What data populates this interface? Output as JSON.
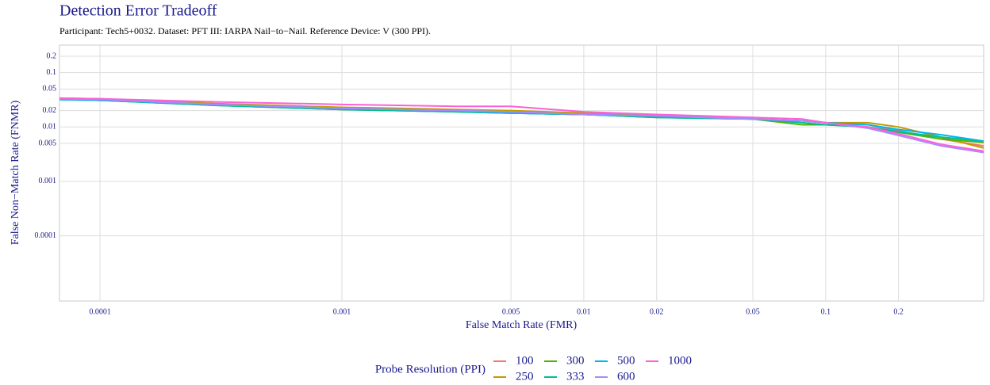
{
  "chart_data": {
    "type": "line",
    "title": "Detection Error Tradeoff",
    "subtitle": "Participant: Tech5+0032. Dataset: PFT III: IARPA Nail−to−Nail. Reference Device: V (300 PPI).",
    "x_label": "False Match Rate (FMR)",
    "y_label": "False Non−Match Rate (FNMR)",
    "legend_title": "Probe Resolution (PPI)",
    "log_x": true,
    "log_y": true,
    "grid": true,
    "legend_position": "bottom",
    "xlim": [
      6.8e-05,
      0.45
    ],
    "ylim": [
      6.3e-06,
      0.32
    ],
    "xticks": [
      0.0001,
      0.001,
      0.005,
      0.01,
      0.02,
      0.05,
      0.1,
      0.2
    ],
    "yticks": [
      0.0001,
      0.001,
      0.005,
      0.01,
      0.02,
      0.05,
      0.1,
      0.2
    ],
    "x": [
      6.8e-05,
      0.0001,
      0.0003,
      0.001,
      0.003,
      0.005,
      0.01,
      0.02,
      0.05,
      0.08,
      0.1,
      0.15,
      0.2,
      0.3,
      0.45
    ],
    "series": [
      {
        "name": "100",
        "color": "#F8766D",
        "values": [
          0.033,
          0.032,
          0.026,
          0.022,
          0.02,
          0.019,
          0.017,
          0.016,
          0.014,
          0.013,
          0.012,
          0.011,
          0.0085,
          0.006,
          0.0045
        ]
      },
      {
        "name": "250",
        "color": "#C49A00",
        "values": [
          0.034,
          0.033,
          0.027,
          0.023,
          0.021,
          0.02,
          0.018,
          0.016,
          0.014,
          0.013,
          0.012,
          0.012,
          0.01,
          0.0065,
          0.0041
        ]
      },
      {
        "name": "300",
        "color": "#53B400",
        "values": [
          0.032,
          0.031,
          0.025,
          0.021,
          0.019,
          0.018,
          0.017,
          0.015,
          0.014,
          0.011,
          0.011,
          0.01,
          0.008,
          0.006,
          0.0052
        ]
      },
      {
        "name": "333",
        "color": "#00C094",
        "values": [
          0.032,
          0.031,
          0.025,
          0.021,
          0.019,
          0.018,
          0.017,
          0.015,
          0.014,
          0.012,
          0.011,
          0.01,
          0.0082,
          0.0065,
          0.0055
        ]
      },
      {
        "name": "500",
        "color": "#00B6EB",
        "values": [
          0.032,
          0.031,
          0.026,
          0.022,
          0.02,
          0.018,
          0.017,
          0.016,
          0.014,
          0.013,
          0.012,
          0.011,
          0.009,
          0.0072,
          0.0055
        ]
      },
      {
        "name": "600",
        "color": "#A58AFF",
        "values": [
          0.033,
          0.032,
          0.026,
          0.022,
          0.02,
          0.019,
          0.017,
          0.016,
          0.014,
          0.013,
          0.012,
          0.0095,
          0.007,
          0.0045,
          0.0034
        ]
      },
      {
        "name": "1000",
        "color": "#FB61D7",
        "values": [
          0.034,
          0.033,
          0.029,
          0.026,
          0.024,
          0.024,
          0.019,
          0.017,
          0.015,
          0.014,
          0.012,
          0.01,
          0.0075,
          0.0048,
          0.0036
        ]
      }
    ]
  }
}
